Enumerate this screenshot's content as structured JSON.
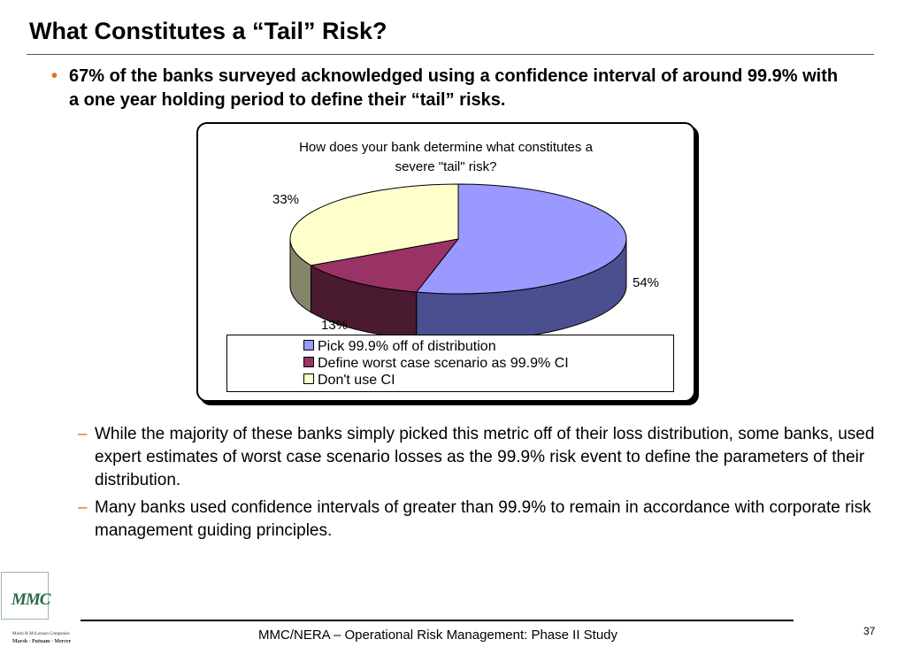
{
  "slide": {
    "title": "What Constitutes a “Tail” Risk?",
    "main_bullet": "67% of the banks surveyed acknowledged using a confidence interval of around 99.9% with a one year holding period to define their “tail” risks.",
    "sub_bullets": [
      "While the majority of these banks simply picked this metric off of their loss distribution, some banks, used expert estimates of worst case scenario losses as the 99.9% risk event to define the parameters of their distribution.",
      "Many banks used confidence intervals of greater than 99.9% to remain in accordance with corporate risk management guiding principles."
    ],
    "bullet_glyph": "•",
    "dash_glyph": "–",
    "accent_color": "#e07020"
  },
  "chart_data": {
    "type": "pie",
    "style": "3d",
    "title_lines": [
      "How does your bank determine what constitutes a",
      "severe \"tail\" risk?"
    ],
    "categories": [
      "Pick 99.9% off of distribution",
      "Define worst case scenario as 99.9% CI",
      "Don't use CI"
    ],
    "values": [
      54,
      13,
      33
    ],
    "data_labels": [
      "54%",
      "13%",
      "33%"
    ],
    "colors": {
      "top": [
        "#9999ff",
        "#993366",
        "#ffffcc"
      ],
      "side": [
        "#4a4f8f",
        "#4a1a30",
        "#84856a"
      ]
    },
    "legend_position": "bottom"
  },
  "footer": {
    "text": "MMC/NERA – Operational Risk Management: Phase II Study",
    "page_number": "37",
    "logo_text": "MMC",
    "logo_company": "Marsh & McLennan Companies",
    "logo_brands": "Marsh · Putnam · Mercer"
  }
}
